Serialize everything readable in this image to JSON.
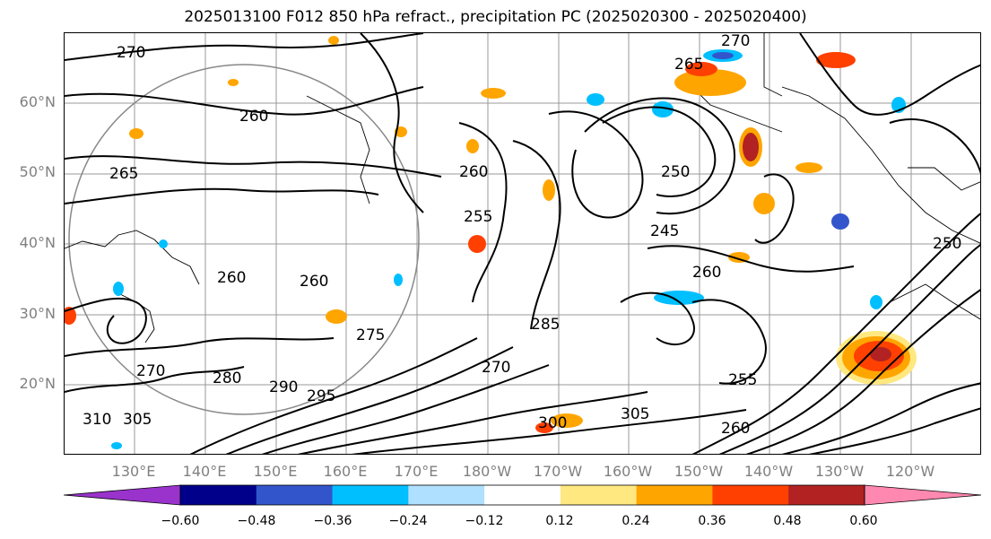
{
  "title": "2025013100 F012 850 hPa refract., precipitation PC (2025020300 - 2025020400)",
  "map": {
    "latitude_labels": [
      "60°N",
      "50°N",
      "40°N",
      "30°N",
      "20°N"
    ],
    "longitude_labels": [
      "130°E",
      "140°E",
      "150°E",
      "160°E",
      "170°E",
      "180°W",
      "170°W",
      "160°W",
      "150°W",
      "140°W",
      "130°W",
      "120°W"
    ],
    "contour_labels": [
      "270",
      "270",
      "265",
      "260",
      "265",
      "260",
      "255",
      "250",
      "245",
      "260",
      "260",
      "260",
      "270",
      "275",
      "280",
      "285",
      "290",
      "295",
      "305",
      "310",
      "270",
      "250",
      "255",
      "260",
      "300",
      "305"
    ]
  },
  "colorbar": {
    "tick_labels": [
      "−0.60",
      "−0.48",
      "−0.36",
      "−0.24",
      "−0.12",
      "0.12",
      "0.24",
      "0.36",
      "0.48",
      "0.60"
    ],
    "colors": [
      "#9933cc",
      "#00008b",
      "#3355cc",
      "#00bfff",
      "#b0e0ff",
      "#ffffff",
      "#ffe880",
      "#ffa500",
      "#ff4000",
      "#b22222",
      "#ff88b0"
    ]
  }
}
